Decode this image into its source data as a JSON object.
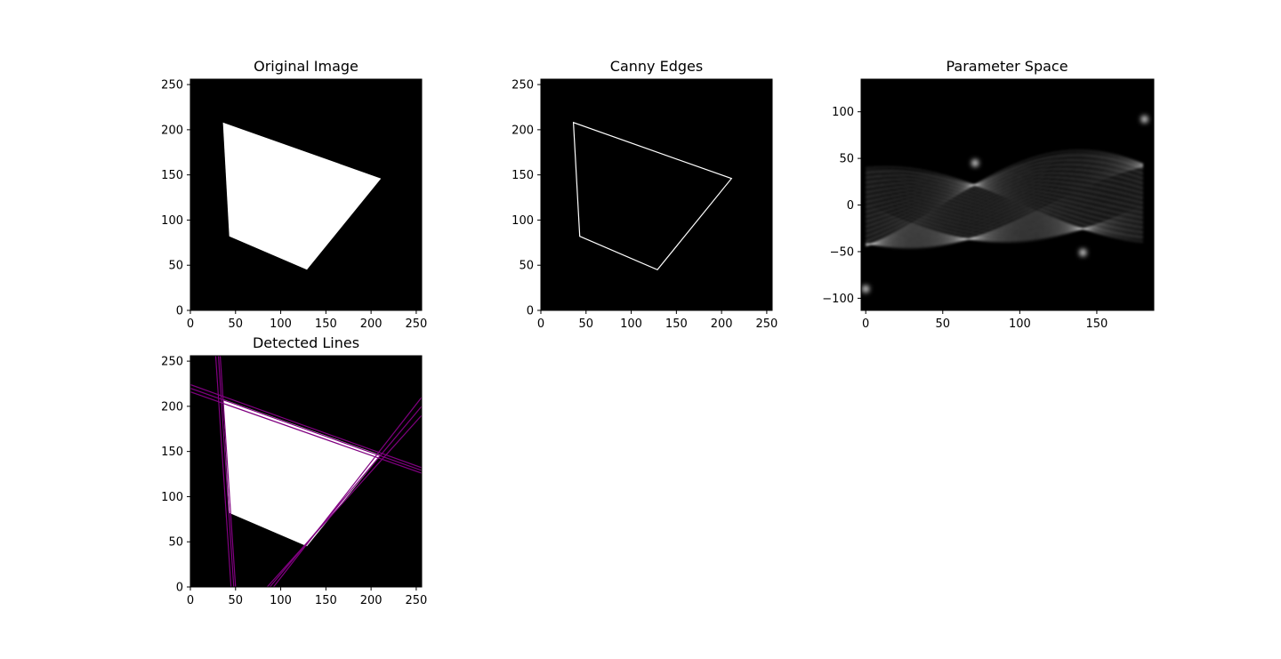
{
  "chart_data": [
    {
      "type": "image",
      "title": "Original Image",
      "xlabel": "",
      "ylabel": "",
      "image_size": [
        256,
        256
      ],
      "xlim": [
        0,
        256
      ],
      "ylim": [
        256,
        0
      ],
      "xticks": [
        "0",
        "50",
        "100",
        "150",
        "200",
        "250"
      ],
      "yticks": [
        "0",
        "50",
        "100",
        "150",
        "200",
        "250"
      ],
      "colors": {
        "background": "#000000",
        "shape": "#ffffff"
      },
      "shape_vertices": [
        [
          43,
          82
        ],
        [
          129,
          45
        ],
        [
          211,
          146
        ],
        [
          36,
          208
        ]
      ]
    },
    {
      "type": "image",
      "title": "Canny Edges",
      "xlabel": "",
      "ylabel": "",
      "image_size": [
        256,
        256
      ],
      "xlim": [
        0,
        256
      ],
      "ylim": [
        256,
        0
      ],
      "xticks": [
        "0",
        "50",
        "100",
        "150",
        "200",
        "250"
      ],
      "yticks": [
        "0",
        "50",
        "100",
        "150",
        "200",
        "250"
      ],
      "colors": {
        "background": "#000000",
        "edge": "#ffffff"
      },
      "edge_vertices": [
        [
          43,
          82
        ],
        [
          129,
          45
        ],
        [
          211,
          146
        ],
        [
          36,
          208
        ]
      ]
    },
    {
      "type": "heatmap",
      "title": "Parameter Space",
      "xlabel": "",
      "ylabel": "",
      "xlim": [
        -3,
        187
      ],
      "ylim": [
        135,
        -113
      ],
      "xticks": [
        "0",
        "50",
        "100",
        "150"
      ],
      "yticks": [
        "100",
        "50",
        "0",
        "−50",
        "−100"
      ],
      "colormap": "gray",
      "bright_points": [
        [
          71,
          45
        ],
        [
          141,
          -51
        ],
        [
          0,
          -90
        ],
        [
          181,
          92
        ]
      ]
    },
    {
      "type": "image",
      "title": "Detected Lines",
      "xlabel": "",
      "ylabel": "",
      "image_size": [
        256,
        256
      ],
      "xlim": [
        0,
        256
      ],
      "ylim": [
        256,
        0
      ],
      "xticks": [
        "0",
        "50",
        "100",
        "150",
        "200",
        "250"
      ],
      "yticks": [
        "0",
        "50",
        "100",
        "150",
        "200",
        "250"
      ],
      "colors": {
        "background": "#000000",
        "shape": "#ffffff",
        "lines": "#800080"
      },
      "shape_vertices": [
        [
          43,
          82
        ],
        [
          129,
          45
        ],
        [
          211,
          146
        ],
        [
          36,
          208
        ]
      ],
      "lines": [
        {
          "p1": [
            45,
            0
          ],
          "p2": [
            28,
            256
          ]
        },
        {
          "p1": [
            48,
            0
          ],
          "p2": [
            31,
            256
          ]
        },
        {
          "p1": [
            50,
            0
          ],
          "p2": [
            33,
            256
          ]
        },
        {
          "p1": [
            85,
            0
          ],
          "p2": [
            256,
            190
          ]
        },
        {
          "p1": [
            88,
            0
          ],
          "p2": [
            256,
            200
          ]
        },
        {
          "p1": [
            92,
            0
          ],
          "p2": [
            256,
            210
          ]
        },
        {
          "p1": [
            0,
            216
          ],
          "p2": [
            256,
            126
          ]
        },
        {
          "p1": [
            0,
            220
          ],
          "p2": [
            256,
            129
          ]
        },
        {
          "p1": [
            0,
            224
          ],
          "p2": [
            256,
            132
          ]
        }
      ]
    }
  ]
}
